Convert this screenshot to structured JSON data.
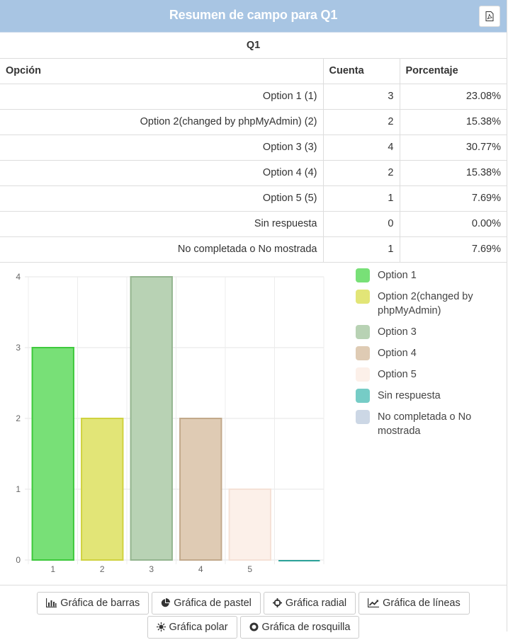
{
  "header": {
    "title": "Resumen de campo para Q1",
    "export_icon": "pdf-file-icon"
  },
  "table": {
    "question": "Q1",
    "columns": [
      "Opción",
      "Cuenta",
      "Porcentaje"
    ],
    "rows": [
      {
        "option": "Option 1 (1)",
        "count": "3",
        "percent": "23.08%"
      },
      {
        "option": "Option 2(changed by phpMyAdmin) (2)",
        "count": "2",
        "percent": "15.38%"
      },
      {
        "option": "Option 3 (3)",
        "count": "4",
        "percent": "30.77%"
      },
      {
        "option": "Option 4 (4)",
        "count": "2",
        "percent": "15.38%"
      },
      {
        "option": "Option 5 (5)",
        "count": "1",
        "percent": "7.69%"
      },
      {
        "option": "Sin respuesta",
        "count": "0",
        "percent": "0.00%"
      },
      {
        "option": "No completada o No mostrada",
        "count": "1",
        "percent": "7.69%"
      }
    ]
  },
  "chart_data": {
    "type": "bar",
    "title": "",
    "xlabel": "",
    "ylabel": "",
    "categories": [
      "1",
      "2",
      "3",
      "4",
      "5",
      ""
    ],
    "values": [
      3,
      2,
      4,
      2,
      1,
      0
    ],
    "ylim": [
      0,
      4
    ],
    "yticks": [
      "0",
      "1",
      "2",
      "3",
      "4"
    ],
    "grid": true,
    "legend_position": "right",
    "legend": [
      {
        "label": "Option 1",
        "color": "#78e077",
        "border": "#3ec93c"
      },
      {
        "label": "Option 2(changed by phpMyAdmin)",
        "color": "#e2e577",
        "border": "#cfd23f"
      },
      {
        "label": "Option 3",
        "color": "#b8d2b4",
        "border": "#94b58f"
      },
      {
        "label": "Option 4",
        "color": "#dfcbb4",
        "border": "#c2a98b"
      },
      {
        "label": "Option 5",
        "color": "#fcf0e9",
        "border": "#f5e1d6"
      },
      {
        "label": "Sin respuesta",
        "color": "#76ccc6",
        "border": "#2aa198"
      },
      {
        "label": "No completada o No mostrada",
        "color": "#ccd7e5",
        "border": "#aebfd5"
      }
    ]
  },
  "buttons": [
    {
      "label": "Gráfica de barras",
      "icon": "bar-chart-icon"
    },
    {
      "label": "Gráfica de pastel",
      "icon": "pie-chart-icon"
    },
    {
      "label": "Gráfica radial",
      "icon": "crosshair-icon"
    },
    {
      "label": "Gráfica de líneas",
      "icon": "line-chart-icon"
    },
    {
      "label": "Gráfica polar",
      "icon": "sun-icon"
    },
    {
      "label": "Gráfica de rosquilla",
      "icon": "doughnut-icon"
    }
  ]
}
